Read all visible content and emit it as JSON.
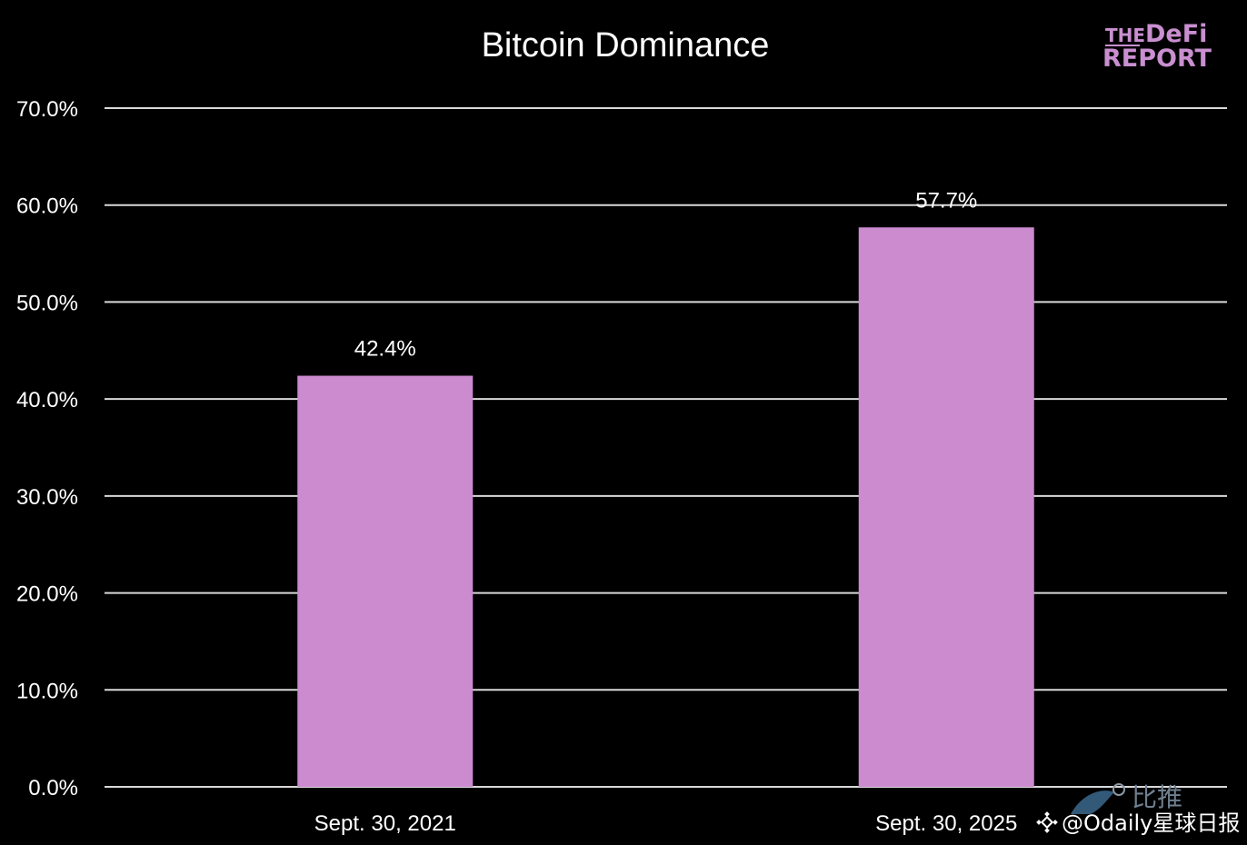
{
  "chart_data": {
    "type": "bar",
    "title": "Bitcoin Dominance",
    "xlabel": "",
    "ylabel": "",
    "categories": [
      "Sept. 30, 2021",
      "Sept. 30, 2025"
    ],
    "values": [
      42.4,
      57.7
    ],
    "data_labels": [
      "42.4%",
      "57.7%"
    ],
    "ylim": [
      0,
      70
    ],
    "yticks": [
      0,
      10,
      20,
      30,
      40,
      50,
      60,
      70
    ],
    "ytick_labels": [
      "0.0%",
      "10.0%",
      "20.0%",
      "30.0%",
      "40.0%",
      "50.0%",
      "60.0%",
      "70.0%"
    ],
    "grid": true,
    "legend": "none",
    "bar_color": "#cc8acf",
    "background": "#000000",
    "gridline_color": "#d9d9d9"
  },
  "logo": {
    "line1_small": "THE",
    "line1_big": "DeFi",
    "line2": "REPORT"
  },
  "watermark": {
    "cn_brand": "比推",
    "handle": "@Odaily星球日报"
  }
}
